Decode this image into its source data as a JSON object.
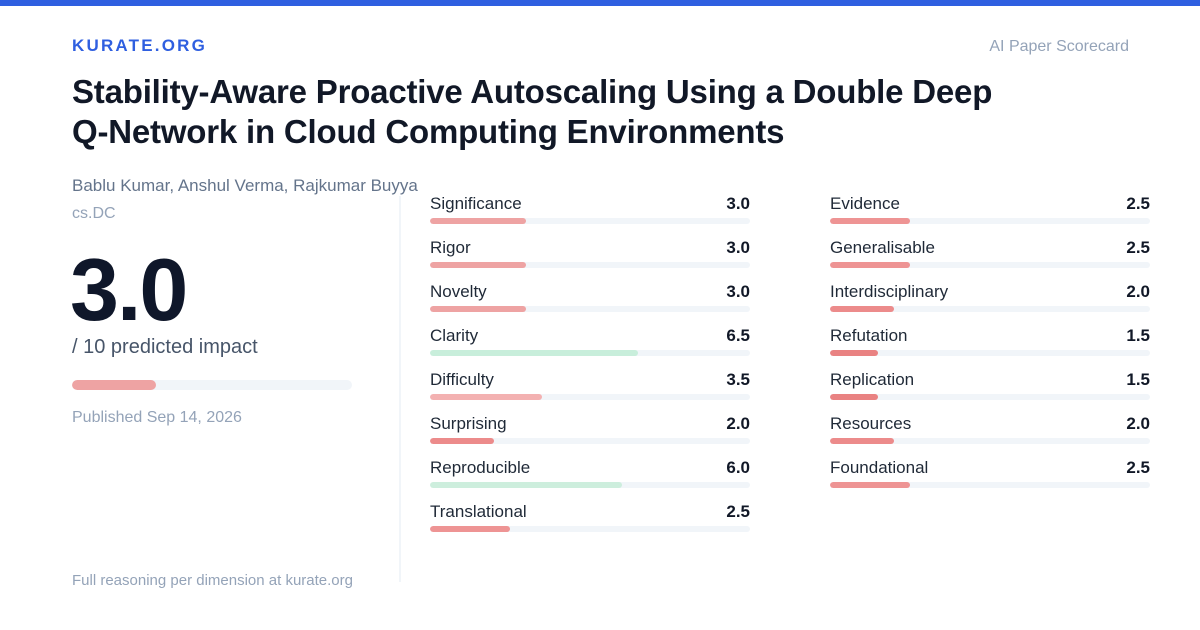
{
  "header": {
    "brand": "KURATE.ORG",
    "tagline": "AI Paper Scorecard"
  },
  "paper": {
    "title": "Stability-Aware Proactive Autoscaling Using a Double Deep Q-Network in Cloud Computing Environments",
    "authors": "Bablu Kumar, Anshul Verma, Rajkumar Buyya",
    "category": "cs.DC",
    "published": "Published Sep 14, 2026"
  },
  "score": {
    "value": "3.0",
    "fraction": 0.3,
    "label": "/ 10 predicted impact",
    "bar_color": "#eea3a3"
  },
  "dimensions": {
    "left": [
      {
        "name": "Significance",
        "value": "3.0",
        "score": 3.0,
        "color": "#eea3a3"
      },
      {
        "name": "Rigor",
        "value": "3.0",
        "score": 3.0,
        "color": "#eea3a3"
      },
      {
        "name": "Novelty",
        "value": "3.0",
        "score": 3.0,
        "color": "#eea3a3"
      },
      {
        "name": "Clarity",
        "value": "6.5",
        "score": 6.5,
        "color": "#c8eedb"
      },
      {
        "name": "Difficulty",
        "value": "3.5",
        "score": 3.5,
        "color": "#f3b1b1"
      },
      {
        "name": "Surprising",
        "value": "2.0",
        "score": 2.0,
        "color": "#ec8b8b"
      },
      {
        "name": "Reproducible",
        "value": "6.0",
        "score": 6.0,
        "color": "#cdeedd"
      },
      {
        "name": "Translational",
        "value": "2.5",
        "score": 2.5,
        "color": "#ee9494"
      }
    ],
    "right": [
      {
        "name": "Evidence",
        "value": "2.5",
        "score": 2.5,
        "color": "#ee9494"
      },
      {
        "name": "Generalisable",
        "value": "2.5",
        "score": 2.5,
        "color": "#ee9494"
      },
      {
        "name": "Interdisciplinary",
        "value": "2.0",
        "score": 2.0,
        "color": "#ec8b8b"
      },
      {
        "name": "Refutation",
        "value": "1.5",
        "score": 1.5,
        "color": "#e98282"
      },
      {
        "name": "Replication",
        "value": "1.5",
        "score": 1.5,
        "color": "#e98282"
      },
      {
        "name": "Resources",
        "value": "2.0",
        "score": 2.0,
        "color": "#ec8b8b"
      },
      {
        "name": "Foundational",
        "value": "2.5",
        "score": 2.5,
        "color": "#ee9494"
      }
    ],
    "max": 10
  },
  "footer": {
    "text": "Full reasoning per dimension at kurate.org"
  }
}
